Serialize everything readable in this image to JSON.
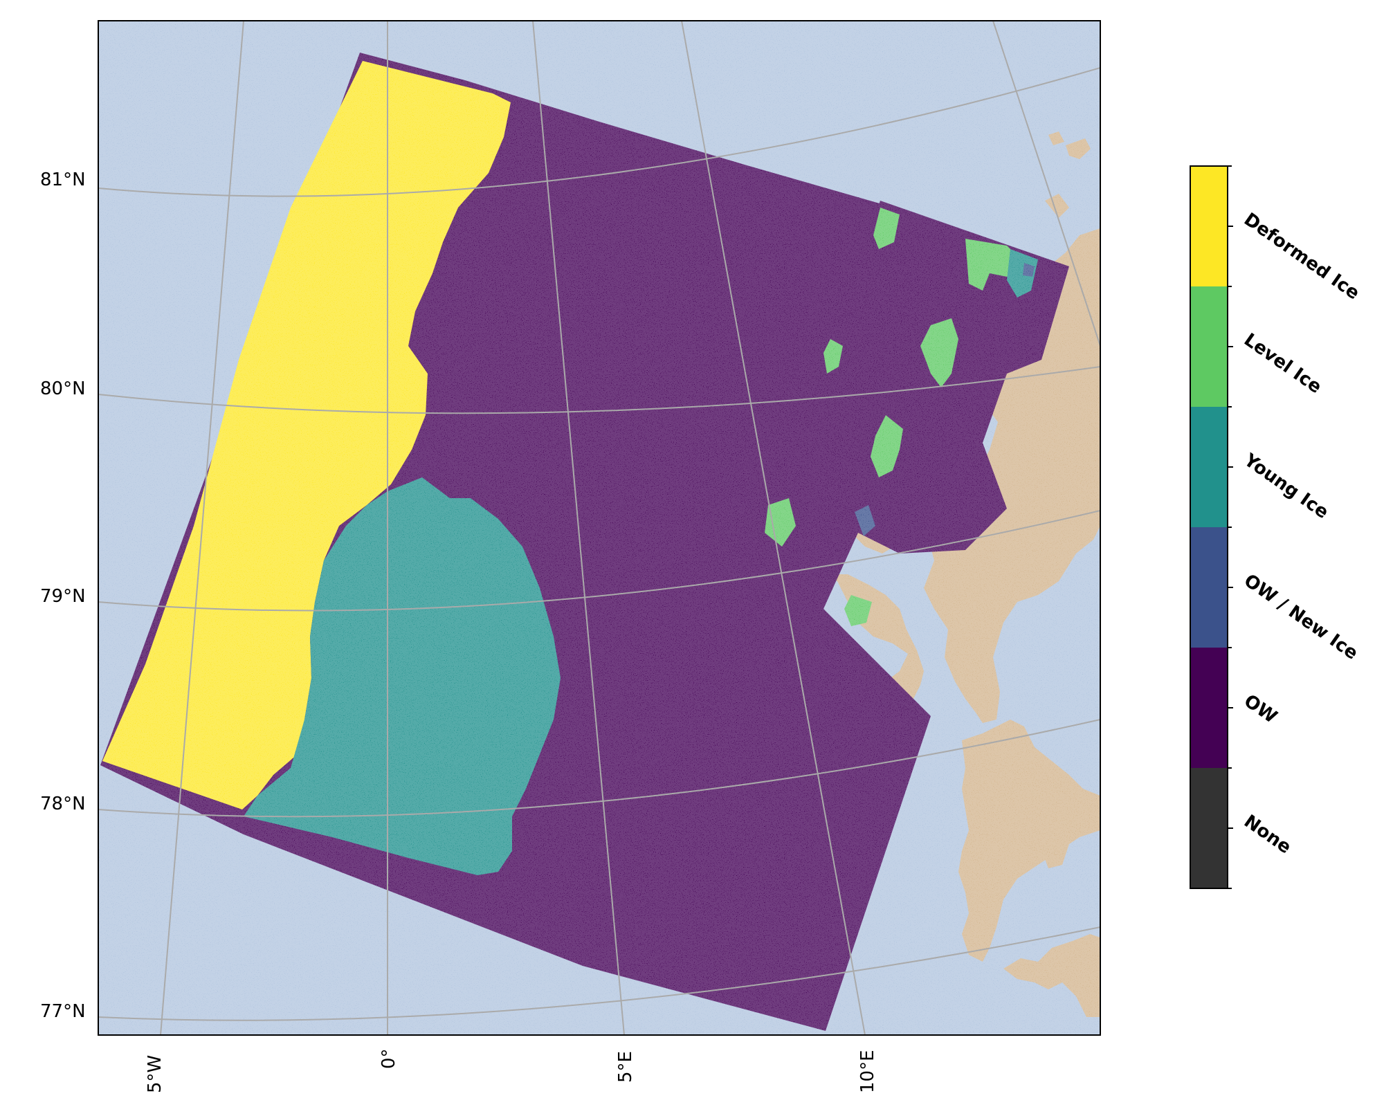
{
  "map": {
    "lat_labels": [
      "81°N",
      "80°N",
      "79°N",
      "78°N",
      "77°N"
    ],
    "lon_labels": [
      "5°W",
      "0°",
      "5°E",
      "10°E"
    ],
    "colors": {
      "ocean": "#b0c4de",
      "land": "#d2b48c",
      "grid": "#aaaaaa",
      "frame": "#000000"
    }
  },
  "legend": {
    "classes": [
      {
        "label": "Deformed Ice",
        "color": "#fde725"
      },
      {
        "label": "Level Ice",
        "color": "#5ec962"
      },
      {
        "label": "Young Ice",
        "color": "#21918c"
      },
      {
        "label": "OW / New Ice",
        "color": "#3b528b"
      },
      {
        "label": "OW",
        "color": "#440154"
      },
      {
        "label": "None",
        "color": "#333333"
      }
    ]
  }
}
